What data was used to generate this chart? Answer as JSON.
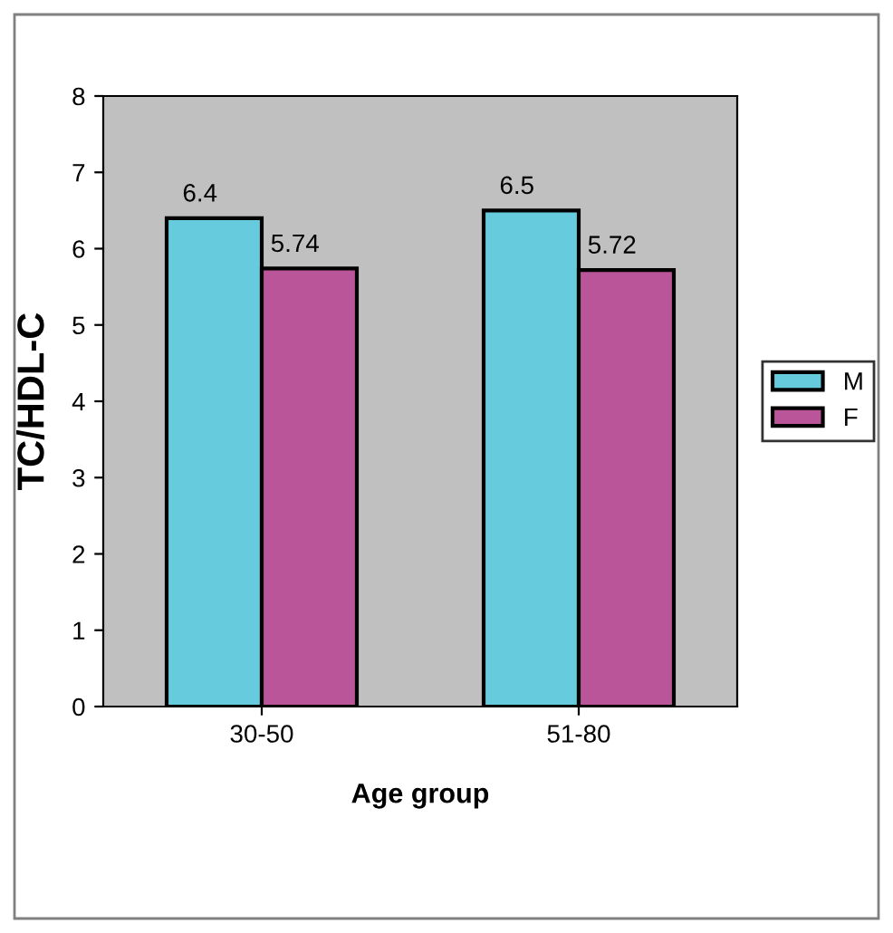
{
  "chart_data": {
    "type": "bar",
    "xlabel": "Age group",
    "ylabel": "TC/HDL-C",
    "categories": [
      "30-50",
      "51-80"
    ],
    "series": [
      {
        "name": "M",
        "color": "#66ccdd",
        "values": [
          6.4,
          6.5
        ]
      },
      {
        "name": "F",
        "color": "#bb5599",
        "values": [
          5.74,
          5.72
        ]
      }
    ],
    "ylim": [
      0,
      8
    ],
    "yticks": [
      0,
      1,
      2,
      3,
      4,
      5,
      6,
      7,
      8
    ],
    "data_labels": true,
    "legend": "right",
    "grid": false
  }
}
